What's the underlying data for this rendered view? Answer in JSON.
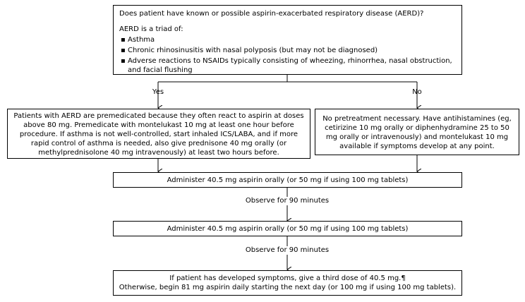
{
  "question_box": {
    "question": "Does patient have known or possible aspirin-exacerbated respiratory disease (AERD)?",
    "intro": "AERD is a triad of:",
    "bullets": [
      "Asthma",
      "Chronic rhinosinusitis with nasal polyposis (but may not be diagnosed)",
      "Adverse reactions to NSAIDs typically consisting of wheezing, rhinorrhea, nasal obstruction, and facial flushing"
    ]
  },
  "branches": {
    "yes_label": "Yes",
    "no_label": "No"
  },
  "yes_box": {
    "text": "Patients with AERD are premedicated because they often react to aspirin at doses above 80 mg. Premedicate with montelukast 10 mg at least one hour before procedure. If asthma is not well-controlled, start inhaled ICS/LABA, and if more rapid control of asthma is needed, also give prednisone 40 mg orally (or methylprednisolone 40 mg intravenously) at least two hours before."
  },
  "no_box": {
    "text": "No pretreatment necessary. Have antihistamines (eg, cetirizine 10 mg orally or diphenhydramine 25 to 50 mg orally or intravenously) and montelukast 10 mg available if symptoms develop at any point."
  },
  "step1": {
    "text": "Administer 40.5 mg aspirin orally (or 50 mg if using 100 mg tablets)"
  },
  "observe1": {
    "text": "Observe for 90 minutes"
  },
  "step2": {
    "text": "Administer 40.5 mg aspirin orally (or 50 mg if using 100 mg tablets)"
  },
  "observe2": {
    "text": "Observe for 90 minutes"
  },
  "final_box": {
    "line1": "If patient has developed symptoms, give a third dose of 40.5 mg.¶",
    "line2": "Otherwise, begin 81 mg aspirin daily starting the next day (or 100 mg if using 100 mg tablets)."
  }
}
